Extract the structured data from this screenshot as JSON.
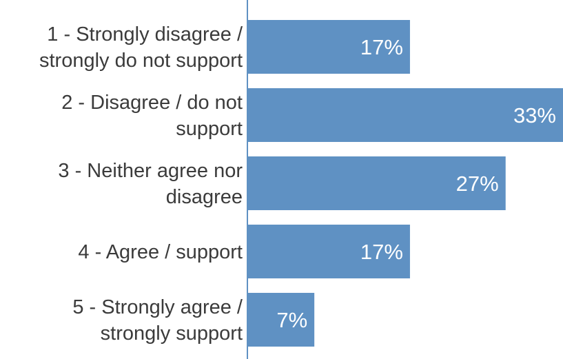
{
  "chart_data": {
    "type": "bar",
    "orientation": "horizontal",
    "categories": [
      [
        "1 - Strongly disagree /",
        "strongly do not support"
      ],
      [
        "2 - Disagree / do not",
        "support"
      ],
      [
        "3 - Neither agree nor",
        "disagree"
      ],
      [
        "4 - Agree / support"
      ],
      [
        "5 - Strongly agree /",
        "strongly support"
      ]
    ],
    "values": [
      17,
      33,
      27,
      17,
      7
    ],
    "value_labels": [
      "17%",
      "33%",
      "27%",
      "17%",
      "7%"
    ],
    "unit": "%",
    "xlim": [
      0,
      33
    ],
    "bar_color": "#5f91c3",
    "axis_color": "#5f91c3",
    "text_color": "#3b3b3b",
    "label_color": "#ffffff",
    "grid": false,
    "legend": "none"
  }
}
